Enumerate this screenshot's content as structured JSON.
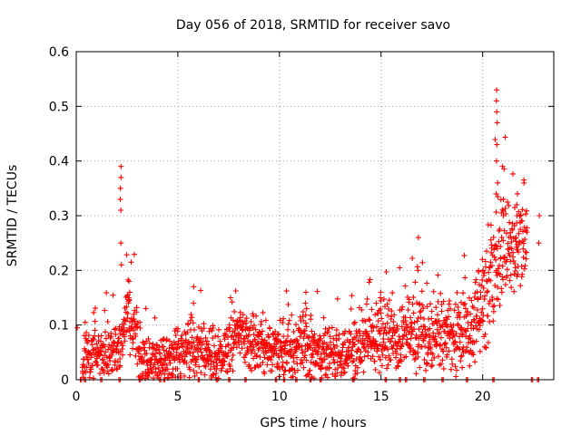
{
  "chart_data": {
    "type": "scatter",
    "title": "Day 056 of 2018, SRMTID for receiver savo",
    "xlabel": "GPS time / hours",
    "ylabel": "SRMTID / TECUs",
    "xlim": [
      0,
      23.5
    ],
    "ylim": [
      0,
      0.6
    ],
    "xticks": [
      0,
      5,
      10,
      15,
      20
    ],
    "xtick_labels": [
      "0",
      "5",
      "10",
      "15",
      "20"
    ],
    "yticks": [
      0,
      0.1,
      0.2,
      0.3,
      0.4,
      0.5,
      0.6
    ],
    "ytick_labels": [
      "0",
      "0.1",
      "0.2",
      "0.3",
      "0.4",
      "0.5",
      "0.6"
    ],
    "grid": true,
    "marker": "+",
    "color": "#ff0000",
    "series": [
      {
        "name": "SRMTID",
        "envelope": [
          {
            "x": 0.0,
            "base": 0.0,
            "spread": 0.0
          },
          {
            "x": 0.5,
            "base": 0.05,
            "spread": 0.05
          },
          {
            "x": 1.5,
            "base": 0.05,
            "spread": 0.05
          },
          {
            "x": 2.0,
            "base": 0.06,
            "spread": 0.05
          },
          {
            "x": 2.7,
            "base": 0.11,
            "spread": 0.07
          },
          {
            "x": 3.3,
            "base": 0.03,
            "spread": 0.05
          },
          {
            "x": 4.0,
            "base": 0.03,
            "spread": 0.04
          },
          {
            "x": 5.0,
            "base": 0.05,
            "spread": 0.05
          },
          {
            "x": 6.0,
            "base": 0.06,
            "spread": 0.06
          },
          {
            "x": 7.0,
            "base": 0.04,
            "spread": 0.05
          },
          {
            "x": 8.0,
            "base": 0.08,
            "spread": 0.05
          },
          {
            "x": 9.0,
            "base": 0.06,
            "spread": 0.05
          },
          {
            "x": 10.0,
            "base": 0.05,
            "spread": 0.05
          },
          {
            "x": 11.0,
            "base": 0.06,
            "spread": 0.06
          },
          {
            "x": 12.0,
            "base": 0.05,
            "spread": 0.05
          },
          {
            "x": 13.0,
            "base": 0.04,
            "spread": 0.05
          },
          {
            "x": 14.0,
            "base": 0.06,
            "spread": 0.05
          },
          {
            "x": 15.0,
            "base": 0.08,
            "spread": 0.06
          },
          {
            "x": 16.0,
            "base": 0.08,
            "spread": 0.06
          },
          {
            "x": 17.0,
            "base": 0.08,
            "spread": 0.07
          },
          {
            "x": 18.0,
            "base": 0.08,
            "spread": 0.06
          },
          {
            "x": 19.0,
            "base": 0.08,
            "spread": 0.07
          },
          {
            "x": 20.0,
            "base": 0.12,
            "spread": 0.08
          },
          {
            "x": 20.6,
            "base": 0.22,
            "spread": 0.1
          },
          {
            "x": 21.2,
            "base": 0.24,
            "spread": 0.1
          },
          {
            "x": 21.9,
            "base": 0.25,
            "spread": 0.08
          },
          {
            "x": 22.7,
            "base": 0.27,
            "spread": 0.04
          }
        ],
        "spikes": [
          {
            "x": 2.2,
            "y": [
              0.39,
              0.37,
              0.35,
              0.33,
              0.31,
              0.25,
              0.21
            ]
          },
          {
            "x": 2.6,
            "y": [
              0.18,
              0.16,
              0.15
            ]
          },
          {
            "x": 5.8,
            "y": [
              0.17,
              0.14
            ]
          },
          {
            "x": 7.6,
            "y": [
              0.15
            ]
          },
          {
            "x": 11.3,
            "y": [
              0.16,
              0.14,
              0.13
            ]
          },
          {
            "x": 15.0,
            "y": [
              0.16,
              0.15
            ]
          },
          {
            "x": 16.8,
            "y": [
              0.26,
              0.2
            ]
          },
          {
            "x": 20.0,
            "y": [
              0.22,
              0.2
            ]
          },
          {
            "x": 20.7,
            "y": [
              0.53,
              0.51,
              0.49,
              0.47,
              0.43,
              0.4,
              0.36,
              0.34
            ]
          },
          {
            "x": 21.0,
            "y": [
              0.39,
              0.33,
              0.3
            ]
          },
          {
            "x": 21.7,
            "y": [
              0.34,
              0.32,
              0.3
            ]
          },
          {
            "x": 22.8,
            "y": [
              0.3,
              0.25
            ]
          }
        ],
        "zeros": [
          0.2,
          0.4,
          1.2,
          2.1,
          3.1,
          4.1,
          4.3,
          6.0,
          6.9,
          7.5,
          8.3,
          9.8,
          10.2,
          10.8,
          11.5,
          12.0,
          13.6,
          15.2,
          15.9,
          16.2,
          17.1,
          18.0,
          19.2,
          20.5,
          22.4,
          22.7
        ]
      }
    ]
  }
}
